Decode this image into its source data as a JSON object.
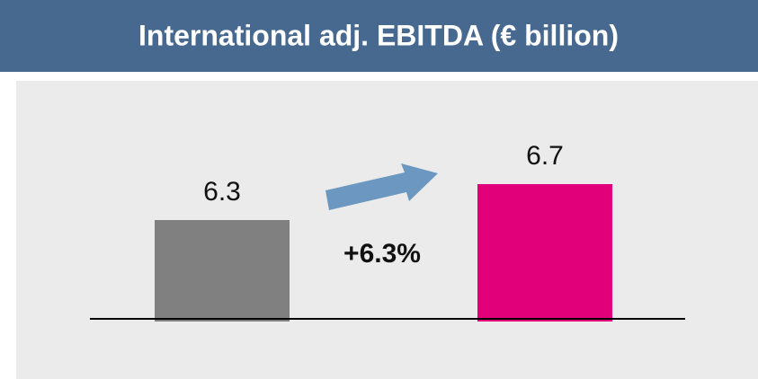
{
  "chart_data": {
    "type": "bar",
    "title": "International adj. EBITDA (€ billion)",
    "categories": [
      null,
      null
    ],
    "values": [
      6.3,
      6.7
    ],
    "colors": [
      "#808080",
      "#e2007a"
    ],
    "ylim": [
      5.2,
      7.4
    ],
    "annotation": "+6.3%"
  }
}
